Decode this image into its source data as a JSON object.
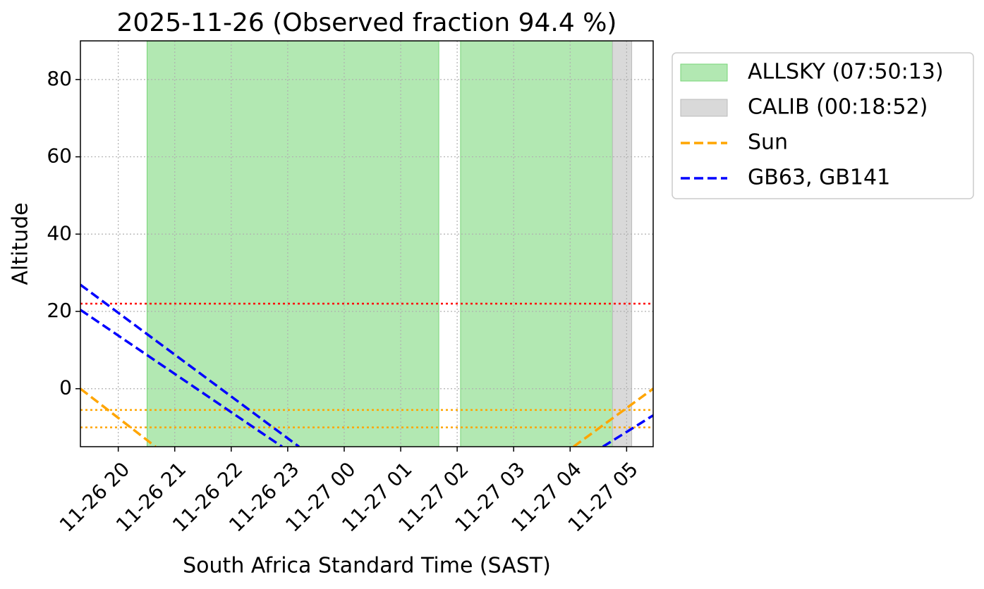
{
  "chart_data": {
    "type": "line",
    "title": "2025-11-26 (Observed fraction 94.4 %)",
    "x_label": "South Africa Standard Time (SAST)",
    "y_label": "Altitude",
    "xlim": [
      19.33,
      29.47
    ],
    "xticks": [
      {
        "value": 20,
        "label": "11-26 20"
      },
      {
        "value": 21,
        "label": "11-26 21"
      },
      {
        "value": 22,
        "label": "11-26 22"
      },
      {
        "value": 23,
        "label": "11-26 23"
      },
      {
        "value": 24,
        "label": "11-27 00"
      },
      {
        "value": 25,
        "label": "11-27 01"
      },
      {
        "value": 26,
        "label": "11-27 02"
      },
      {
        "value": 27,
        "label": "11-27 03"
      },
      {
        "value": 28,
        "label": "11-27 04"
      },
      {
        "value": 29,
        "label": "11-27 05"
      }
    ],
    "ylim": [
      -15,
      90
    ],
    "yticks": [
      0,
      20,
      40,
      60,
      80
    ],
    "grid": true,
    "legend": "outside upper right",
    "spans": [
      {
        "name": "ALLSKY (07:50:13)",
        "color": "#b2e8b2",
        "edge": "#77d477",
        "ranges": [
          [
            20.51,
            25.675
          ],
          [
            26.06,
            28.75
          ]
        ]
      },
      {
        "name": "CALIB (00:18:52)",
        "color": "#d9d9d9",
        "edge": "#bbbbbb",
        "ranges": [
          [
            28.75,
            29.09
          ]
        ]
      }
    ],
    "hlines": [
      {
        "value": 22,
        "color": "red"
      },
      {
        "value": -5.5,
        "color": "orange"
      },
      {
        "value": -10,
        "color": "orange"
      }
    ],
    "series": [
      {
        "name": "Sun",
        "color": "orange",
        "x": [
          19.33,
          20.66,
          null,
          28.06,
          29.47
        ],
        "values": [
          0,
          -15,
          null,
          -15,
          0
        ]
      },
      {
        "name": "GB63, GB141",
        "color": "blue",
        "x": [
          19.33,
          23.2,
          null,
          19.33,
          22.9,
          null,
          28.58,
          29.47
        ],
        "values": [
          26.9,
          -15,
          null,
          20.4,
          -15,
          null,
          -15,
          -6.9
        ]
      }
    ]
  }
}
